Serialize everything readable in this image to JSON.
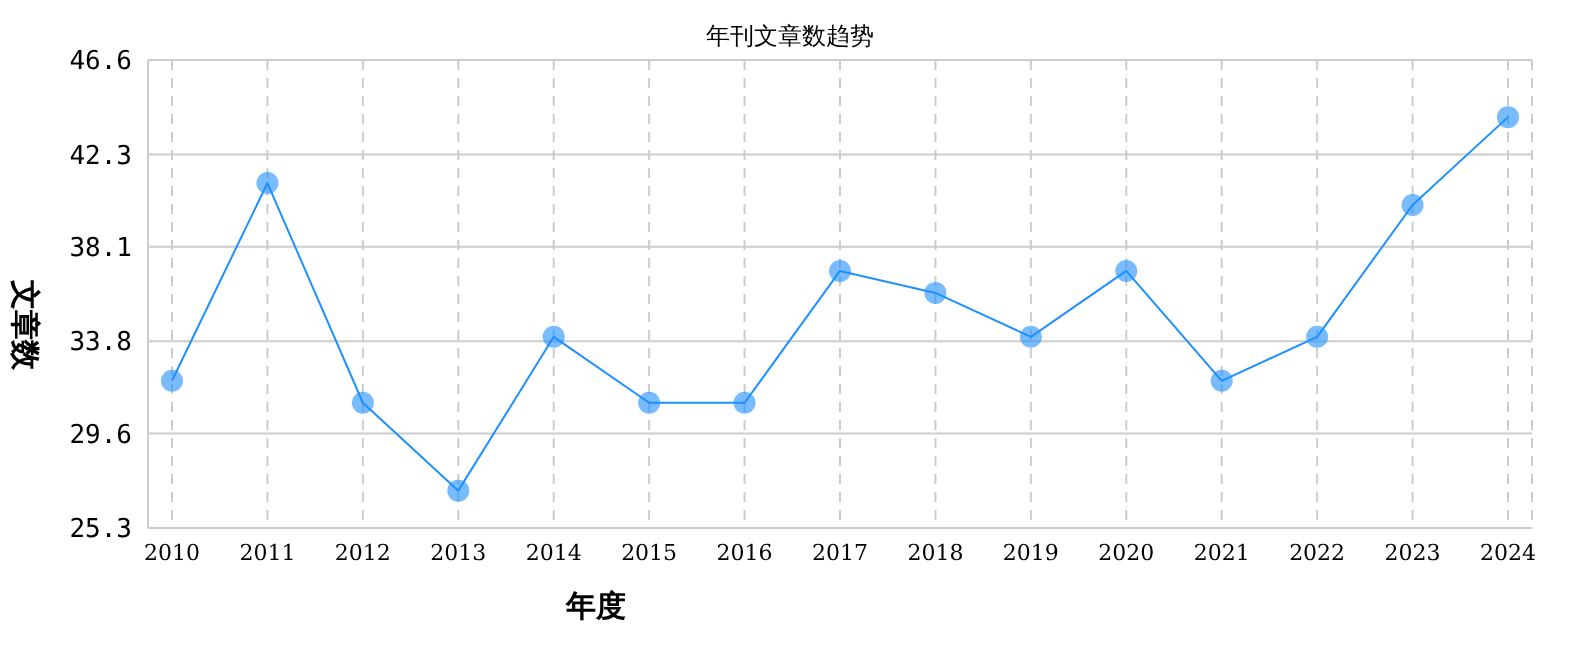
{
  "chart_data": {
    "type": "line",
    "title": "年刊文章数趋势",
    "xlabel": "年度",
    "ylabel": "文章数",
    "categories": [
      "2010",
      "2011",
      "2012",
      "2013",
      "2014",
      "2015",
      "2016",
      "2017",
      "2018",
      "2019",
      "2020",
      "2021",
      "2022",
      "2023",
      "2024"
    ],
    "series": [
      {
        "color": "#1e90ff",
        "values": [
          32,
          41,
          31,
          27,
          34,
          31,
          31,
          37,
          36,
          34,
          37,
          32,
          34,
          40,
          44
        ]
      }
    ],
    "ylim": [
      25.3,
      46.6
    ],
    "yticks": [
      25.3,
      29.6,
      33.8,
      38.1,
      42.3,
      46.6
    ],
    "grid": true,
    "marker": "circle",
    "legend": false
  }
}
